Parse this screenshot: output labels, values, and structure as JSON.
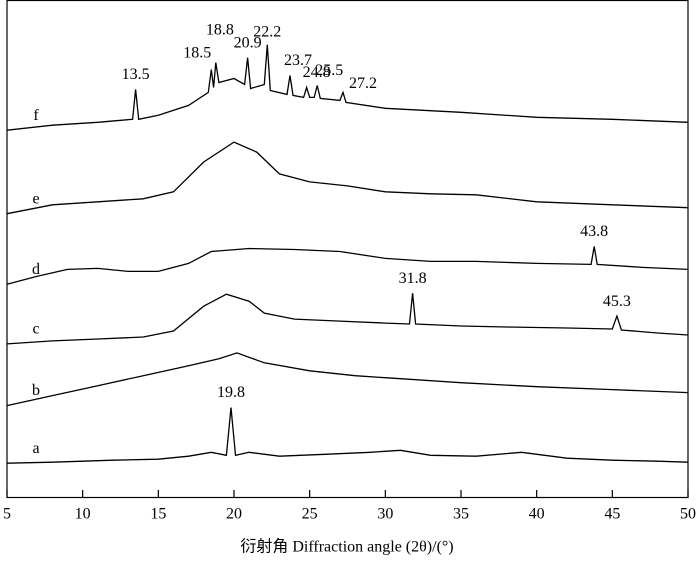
{
  "chart_data": {
    "type": "line",
    "x_label": "衍射角 Diffraction angle (2θ)/(°)",
    "xlim": [
      5,
      50
    ],
    "xticks": [
      5,
      10,
      15,
      20,
      25,
      30,
      35,
      40,
      45,
      50
    ],
    "ylim": [
      0,
      100
    ],
    "series": [
      {
        "name": "a",
        "color": "#000000",
        "x": [
          5,
          8,
          12,
          15,
          17,
          18.5,
          19.5,
          19.8,
          20.1,
          21,
          23,
          26,
          29,
          31,
          33,
          36,
          39,
          42,
          45,
          48,
          50
        ],
        "values": [
          6.8,
          7,
          7.4,
          7.6,
          8.2,
          9,
          8.4,
          18,
          8.4,
          9,
          8.2,
          8.6,
          9,
          9.4,
          8.4,
          8.2,
          9,
          7.8,
          7.4,
          7.2,
          7
        ],
        "peaks": [
          19.8
        ]
      },
      {
        "name": "b",
        "color": "#000000",
        "x": [
          5,
          8,
          11,
          14,
          17,
          19,
          20.2,
          22,
          25,
          28,
          31,
          35,
          40,
          45,
          50
        ],
        "values": [
          18.4,
          20.4,
          22.4,
          24.4,
          26.4,
          27.8,
          29,
          27,
          25.4,
          24.4,
          23.8,
          23,
          22.2,
          21.6,
          21
        ],
        "peaks": []
      },
      {
        "name": "c",
        "color": "#000000",
        "x": [
          5,
          8,
          11,
          14,
          16,
          18,
          19.5,
          21,
          22,
          24,
          27,
          30,
          31.6,
          31.8,
          32,
          35,
          38,
          42,
          45,
          45.3,
          45.6,
          48,
          50
        ],
        "values": [
          30.8,
          31.4,
          31.8,
          32.2,
          33.4,
          38.4,
          40.8,
          39.4,
          37,
          35.8,
          35.4,
          35,
          34.8,
          41,
          34.8,
          34.4,
          34.2,
          34,
          33.8,
          36.4,
          33.6,
          33,
          32.6
        ],
        "peaks": [
          31.8,
          45.3
        ]
      },
      {
        "name": "d",
        "color": "#000000",
        "x": [
          5,
          7,
          9,
          11,
          13,
          15,
          17,
          18.5,
          21,
          24,
          27,
          30,
          33,
          36,
          40,
          43.6,
          43.8,
          44,
          47,
          50
        ],
        "values": [
          42.8,
          44.4,
          45.8,
          46,
          45.4,
          45.4,
          47,
          49.4,
          50,
          49.8,
          49.4,
          48,
          47.4,
          47.4,
          47,
          46.8,
          50.4,
          46.8,
          46.2,
          45.8
        ],
        "peaks": [
          43.8
        ]
      },
      {
        "name": "e",
        "color": "#000000",
        "x": [
          5,
          8,
          11,
          14,
          16,
          18,
          20,
          21.5,
          23,
          25,
          27.5,
          30,
          33,
          36,
          40,
          45,
          50
        ],
        "values": [
          57,
          58.8,
          59.4,
          60,
          61.4,
          67.4,
          71.4,
          69.4,
          65,
          63.4,
          62.6,
          61.4,
          61,
          60.8,
          59.4,
          58.8,
          58.2
        ],
        "peaks": []
      },
      {
        "name": "f",
        "color": "#000000",
        "x": [
          5,
          8,
          11,
          13.3,
          13.5,
          13.7,
          15,
          17,
          18.3,
          18.5,
          18.65,
          18.8,
          19,
          20,
          20.7,
          20.9,
          21.1,
          22,
          22.2,
          22.4,
          23.5,
          23.7,
          23.9,
          24.6,
          24.8,
          25,
          25.3,
          25.5,
          25.7,
          27,
          27.2,
          27.4,
          30,
          35,
          40,
          45,
          50
        ],
        "values": [
          73.8,
          74.8,
          75.4,
          76,
          82,
          76,
          76.8,
          78.8,
          81.4,
          86,
          82.4,
          87.4,
          83.4,
          84.2,
          83,
          88.4,
          82.2,
          83,
          91,
          81.8,
          81,
          84.8,
          80.8,
          80.4,
          82.4,
          80.4,
          80.4,
          82.8,
          80.2,
          79.8,
          81.4,
          79.4,
          78.2,
          77.4,
          76.4,
          76,
          75.4
        ],
        "peaks": [
          13.5,
          18.5,
          18.8,
          20.9,
          22.2,
          23.7,
          24.8,
          25.5,
          27.2
        ]
      }
    ]
  }
}
